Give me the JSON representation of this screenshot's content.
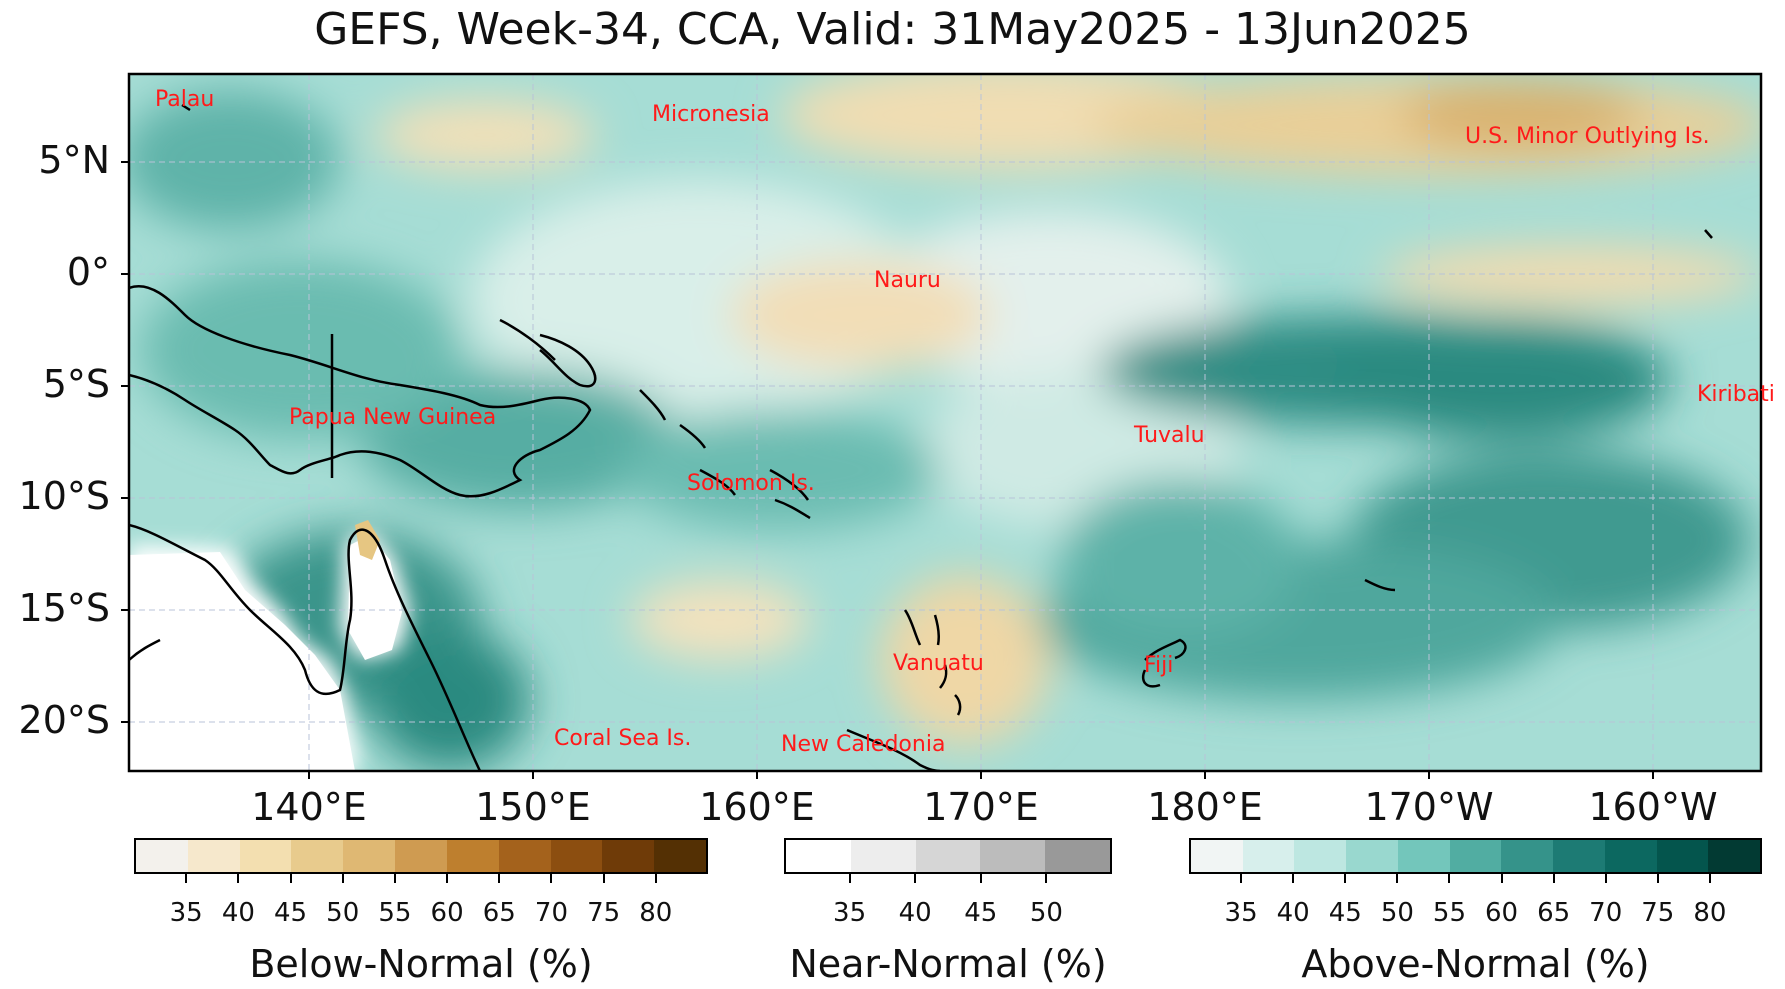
{
  "title": "GEFS, Week-34, CCA, Valid: 31May2025 - 13Jun2025",
  "lat_labels": [
    "5°N",
    "0°",
    "5°S",
    "10°S",
    "15°S",
    "20°S"
  ],
  "lon_labels": [
    "140°E",
    "150°E",
    "160°E",
    "170°E",
    "180°E",
    "170°W",
    "160°W"
  ],
  "place_labels": [
    "Palau",
    "Micronesia",
    "U.S. Minor Outlying Is.",
    "Nauru",
    "Kiribati",
    "Papua New Guinea",
    "Tuvalu",
    "Solomon Is.",
    "Vanuatu",
    "Fiji",
    "Coral Sea Is.",
    "New Caledonia"
  ],
  "colorbars": {
    "below": {
      "label": "Below-Normal (%)",
      "ticks": [
        "35",
        "40",
        "45",
        "50",
        "55",
        "60",
        "65",
        "70",
        "75",
        "80"
      ],
      "colors": [
        "#f3f1ec",
        "#f6e8cc",
        "#f3dfb0",
        "#e8cb8d",
        "#dfb873",
        "#cf9b51",
        "#be7f2e",
        "#a4621c",
        "#8c4e10",
        "#6f3b08",
        "#543004"
      ]
    },
    "near": {
      "label": "Near-Normal (%)",
      "ticks": [
        "35",
        "40",
        "45",
        "50"
      ],
      "colors": [
        "#ffffff",
        "#ededed",
        "#d6d6d6",
        "#bcbcbc",
        "#999999"
      ]
    },
    "above": {
      "label": "Above-Normal (%)",
      "ticks": [
        "35",
        "40",
        "45",
        "50",
        "55",
        "60",
        "65",
        "70",
        "75",
        "80"
      ],
      "colors": [
        "#f1f5f4",
        "#d7efec",
        "#bde7e1",
        "#99d8cf",
        "#73c6bb",
        "#51ada2",
        "#35938a",
        "#1d7b74",
        "#0c6860",
        "#04554d",
        "#023a33"
      ]
    }
  }
}
